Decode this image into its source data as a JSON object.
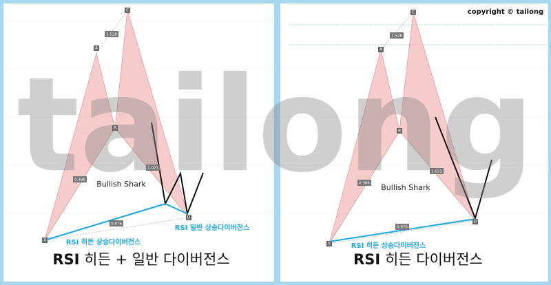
{
  "watermark": "tailong",
  "left": {
    "points": [
      "X",
      "A",
      "B",
      "C",
      "D"
    ],
    "ratios": [
      "1.528",
      "0.386",
      "1.021",
      "0.876"
    ],
    "pattern": "Bullish Shark",
    "rsi_regular": "RSI 일반 상승다이버전스",
    "rsi_hidden": "RSI 히든 상승다이버전스",
    "caption_bold": "RSI",
    "caption_rest": "히든 + 일반 다이버전스"
  },
  "right": {
    "copyright": "copyright © tailong",
    "points": [
      "X",
      "A",
      "B",
      "C",
      "D"
    ],
    "ratios": [
      "1.528",
      "0.386",
      "1.021",
      "0.876"
    ],
    "pattern": "Bullish Shark",
    "rsi_hidden": "RSI 히든 상승다이버전스",
    "caption_bold": "RSI",
    "caption_rest": "히든 다이버전스"
  }
}
